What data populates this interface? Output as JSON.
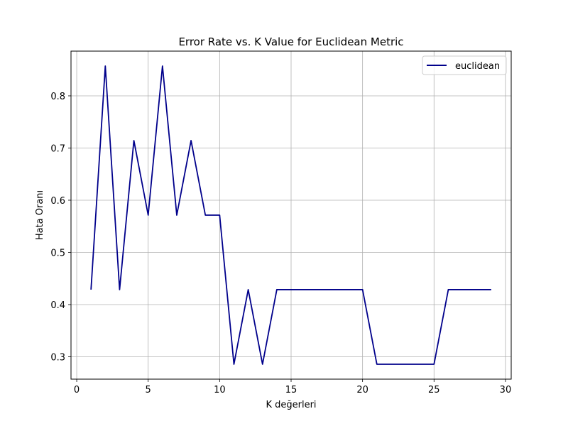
{
  "chart_data": {
    "type": "line",
    "title": "Error Rate vs. K Value for Euclidean Metric",
    "xlabel": "K değerleri",
    "ylabel": "Hata Oranı",
    "xlim": [
      -0.4,
      30.4
    ],
    "ylim": [
      0.2571,
      0.8857
    ],
    "xticks": [
      0,
      5,
      10,
      15,
      20,
      25,
      30
    ],
    "yticks": [
      0.3,
      0.4,
      0.5,
      0.6,
      0.7,
      0.8
    ],
    "ytick_labels": [
      "0.3",
      "0.4",
      "0.5",
      "0.6",
      "0.7",
      "0.8"
    ],
    "grid": true,
    "legend_position": "top-right",
    "series": [
      {
        "name": "euclidean",
        "color": "#00008b",
        "x": [
          1,
          2,
          3,
          4,
          5,
          6,
          7,
          8,
          9,
          10,
          11,
          12,
          13,
          14,
          15,
          16,
          17,
          18,
          19,
          20,
          21,
          22,
          23,
          24,
          25,
          26,
          27,
          28,
          29
        ],
        "y": [
          0.4286,
          0.8571,
          0.4286,
          0.7143,
          0.5714,
          0.8571,
          0.5714,
          0.7143,
          0.5714,
          0.5714,
          0.2857,
          0.4286,
          0.2857,
          0.4286,
          0.4286,
          0.4286,
          0.4286,
          0.4286,
          0.4286,
          0.4286,
          0.2857,
          0.2857,
          0.2857,
          0.2857,
          0.2857,
          0.4286,
          0.4286,
          0.4286,
          0.4286
        ]
      }
    ]
  }
}
